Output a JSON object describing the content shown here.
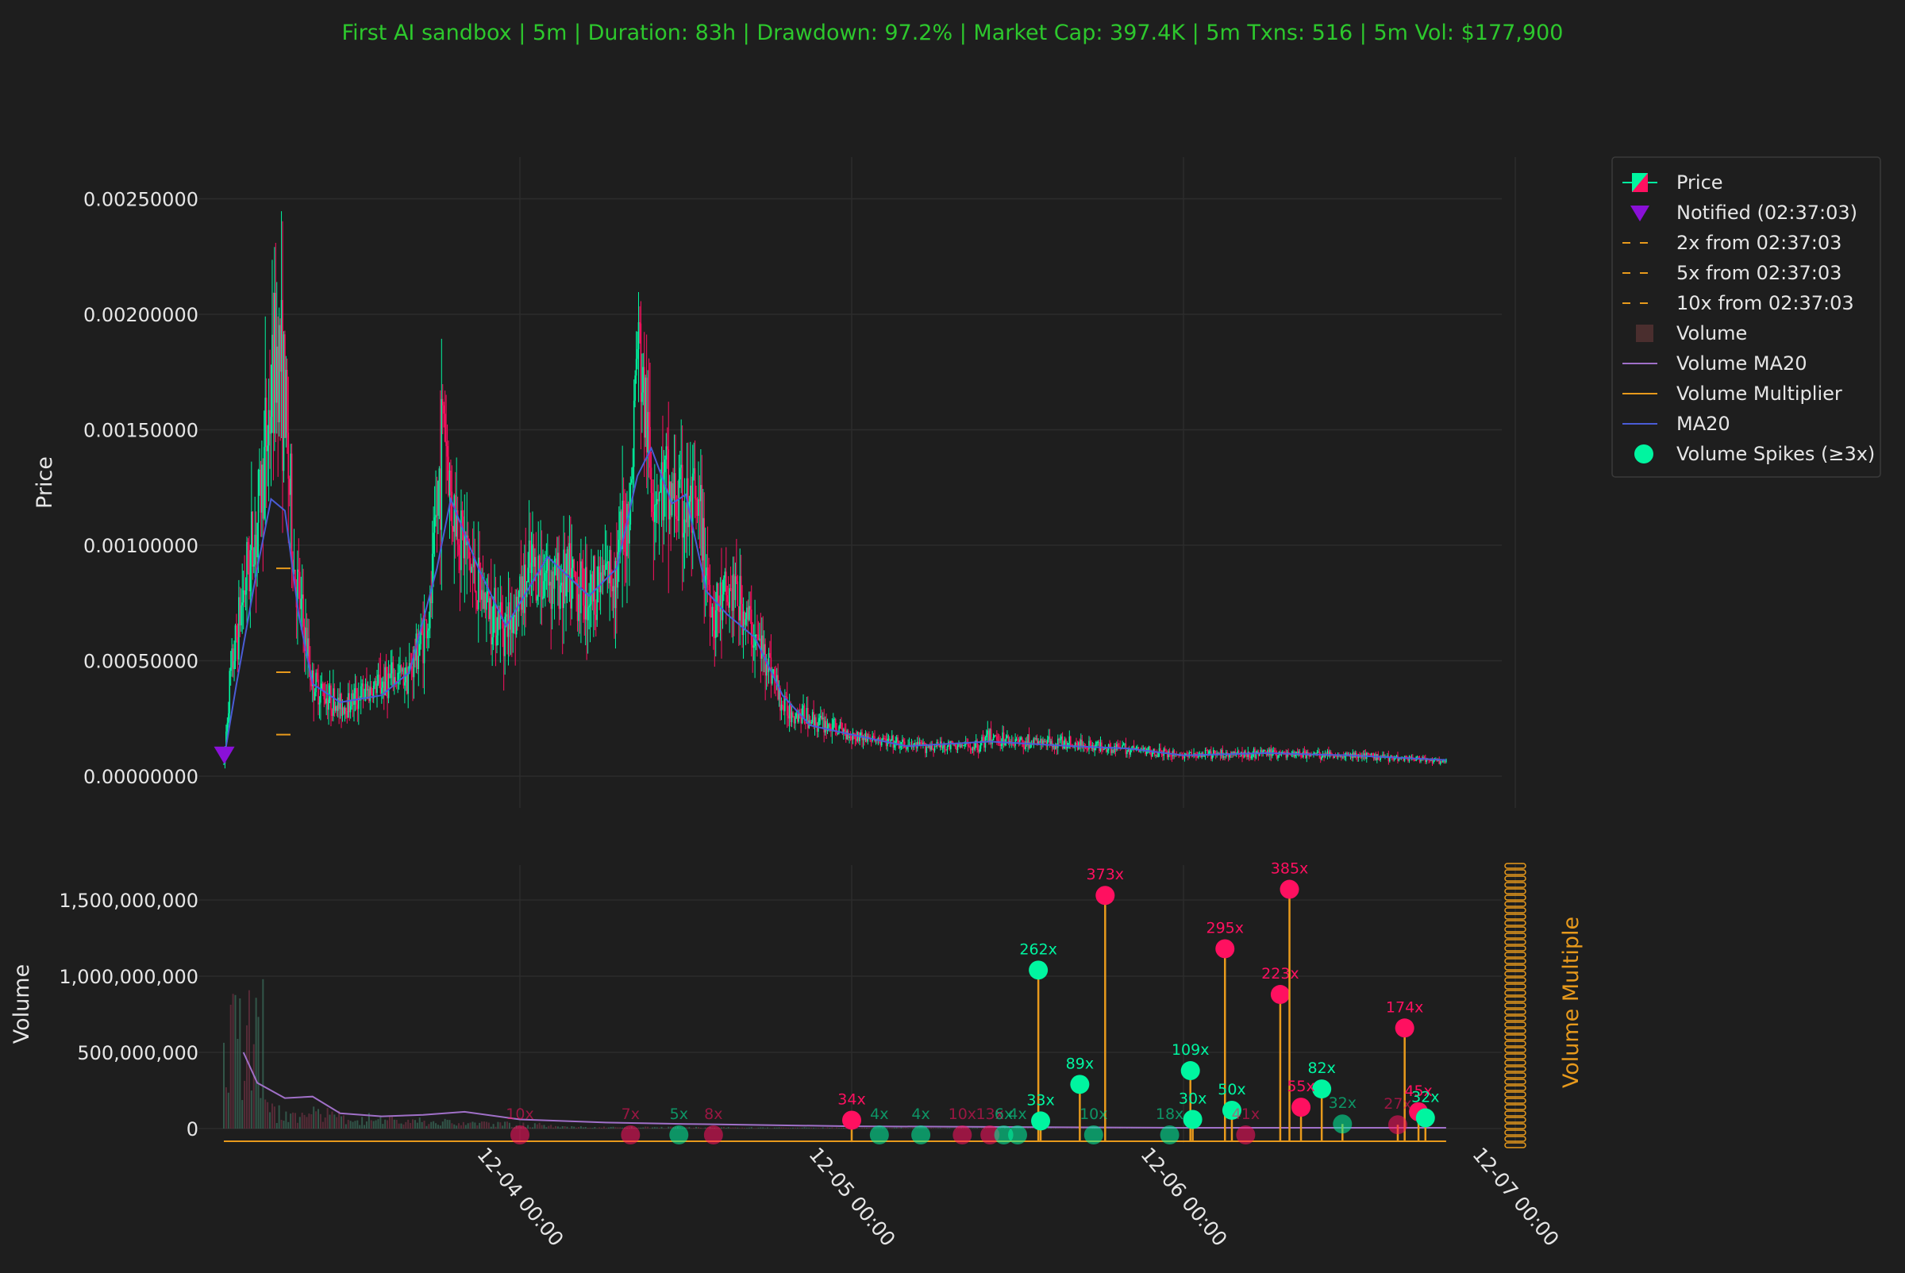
{
  "title": "First AI sandbox | 5m | Duration: 83h | Drawdown: 97.2% | Market Cap: 397.4K | 5m Txns: 516 | 5m Vol: $177,900",
  "colors": {
    "background": "#1e1e1e",
    "title": "#2dc82d",
    "up": "#00f5a0",
    "down": "#ff1060",
    "ma20": "#4a5cd6",
    "volume_ma20": "#a070c8",
    "multiplier": "#e89a1c",
    "notified": "#8a10d8",
    "grid": "#2c2c2c",
    "text": "#e6e6e6"
  },
  "chart_data": [
    {
      "type": "candlestick",
      "ylabel": "Price",
      "ylim": [
        -0.0001,
        0.0026
      ],
      "yticks": [
        "0.00000000",
        "0.00050000",
        "0.00100000",
        "0.00150000",
        "0.00200000",
        "0.00250000"
      ],
      "x_axis": {
        "ticks": [
          "12-04 00:00",
          "12-05 00:00",
          "12-06 00:00",
          "12-07 00:00"
        ]
      },
      "grid": true,
      "legend_position": "outside-right",
      "legend": [
        {
          "label": "Price",
          "marker": "candle"
        },
        {
          "label": "Notified (02:37:03)",
          "marker": "triangle"
        },
        {
          "label": "2x from 02:37:03",
          "marker": "dash"
        },
        {
          "label": "5x from 02:37:03",
          "marker": "dash"
        },
        {
          "label": "10x from 02:37:03",
          "marker": "dash"
        },
        {
          "label": "Volume",
          "marker": "square"
        },
        {
          "label": "Volume MA20",
          "marker": "line-purple"
        },
        {
          "label": "Volume Multiplier",
          "marker": "line-orange"
        },
        {
          "label": "MA20",
          "marker": "line-blue"
        },
        {
          "label": "Volume Spikes (≥3x)",
          "marker": "circle"
        }
      ],
      "notified": {
        "time": "12-03 02:37",
        "price": 9e-05
      },
      "reference_levels": [
        {
          "label": "2x from 02:37:03",
          "value": 0.00018
        },
        {
          "label": "5x from 02:37:03",
          "value": 0.00045
        },
        {
          "label": "10x from 02:37:03",
          "value": 0.0009
        }
      ],
      "price_path": [
        [
          "12-03 02:35",
          5e-05
        ],
        [
          "12-03 03:00",
          0.0004
        ],
        [
          "12-03 04:00",
          0.0008
        ],
        [
          "12-03 05:00",
          0.0011
        ],
        [
          "12-03 06:30",
          0.0019
        ],
        [
          "12-03 07:00",
          0.0016
        ],
        [
          "12-03 07:40",
          0.0009
        ],
        [
          "12-03 09:00",
          0.0004
        ],
        [
          "12-03 11:00",
          0.0003
        ],
        [
          "12-03 14:00",
          0.0004
        ],
        [
          "12-03 16:00",
          0.00045
        ],
        [
          "12-03 17:30",
          0.0007
        ],
        [
          "12-03 18:30",
          0.0016
        ],
        [
          "12-03 19:00",
          0.0012
        ],
        [
          "12-03 21:00",
          0.0008
        ],
        [
          "12-03 23:00",
          0.00065
        ],
        [
          "12-04 01:00",
          0.0009
        ],
        [
          "12-04 03:00",
          0.00085
        ],
        [
          "12-04 05:00",
          0.0008
        ],
        [
          "12-04 07:00",
          0.0009
        ],
        [
          "12-04 08:00",
          0.0012
        ],
        [
          "12-04 08:30",
          0.0019
        ],
        [
          "12-04 09:30",
          0.0013
        ],
        [
          "12-04 11:00",
          0.0012
        ],
        [
          "12-04 13:00",
          0.0011
        ],
        [
          "12-04 14:00",
          0.0007
        ],
        [
          "12-04 15:30",
          0.0008
        ],
        [
          "12-04 17:00",
          0.0006
        ],
        [
          "12-04 18:00",
          0.0005
        ],
        [
          "12-04 19:00",
          0.0003
        ],
        [
          "12-04 21:00",
          0.00025
        ],
        [
          "12-05 00:00",
          0.00018
        ],
        [
          "12-05 04:00",
          0.00013
        ],
        [
          "12-05 09:00",
          0.00013
        ],
        [
          "12-05 10:00",
          0.00017
        ],
        [
          "12-05 12:00",
          0.00015
        ],
        [
          "12-05 16:00",
          0.00014
        ],
        [
          "12-05 20:00",
          0.00012
        ],
        [
          "12-06 00:00",
          9e-05
        ],
        [
          "12-06 06:00",
          0.0001
        ],
        [
          "12-06 12:00",
          9e-05
        ],
        [
          "12-06 16:00",
          8e-05
        ],
        [
          "12-06 19:00",
          6e-05
        ]
      ],
      "series": [
        {
          "name": "MA20",
          "points": [
            [
              "12-03 02:40",
              0.0001
            ],
            [
              "12-03 03:30",
              0.0004
            ],
            [
              "12-03 05:00",
              0.0009
            ],
            [
              "12-03 06:00",
              0.0012
            ],
            [
              "12-03 07:00",
              0.00115
            ],
            [
              "12-03 08:00",
              0.0007
            ],
            [
              "12-03 09:00",
              0.0004
            ],
            [
              "12-03 11:00",
              0.00032
            ],
            [
              "12-03 14:00",
              0.00035
            ],
            [
              "12-03 16:00",
              0.00045
            ],
            [
              "12-03 18:00",
              0.0009
            ],
            [
              "12-03 19:00",
              0.0012
            ],
            [
              "12-03 21:00",
              0.0009
            ],
            [
              "12-03 23:00",
              0.00065
            ],
            [
              "12-04 02:00",
              0.00095
            ],
            [
              "12-04 05:00",
              0.00078
            ],
            [
              "12-04 07:00",
              0.0009
            ],
            [
              "12-04 08:30",
              0.0013
            ],
            [
              "12-04 09:30",
              0.00142
            ],
            [
              "12-04 11:00",
              0.00118
            ],
            [
              "12-04 12:00",
              0.00122
            ],
            [
              "12-04 13:30",
              0.0008
            ],
            [
              "12-04 15:00",
              0.0007
            ],
            [
              "12-04 17:00",
              0.0006
            ],
            [
              "12-04 19:00",
              0.00035
            ],
            [
              "12-04 21:00",
              0.00022
            ],
            [
              "12-05 00:00",
              0.00018
            ],
            [
              "12-05 04:00",
              0.00013
            ],
            [
              "12-05 10:00",
              0.00015
            ],
            [
              "12-05 16:00",
              0.00013
            ],
            [
              "12-05 20:00",
              0.00012
            ],
            [
              "12-06 00:00",
              9e-05
            ],
            [
              "12-06 06:00",
              0.0001
            ],
            [
              "12-06 12:00",
              9e-05
            ],
            [
              "12-06 19:00",
              7e-05
            ]
          ]
        }
      ]
    },
    {
      "type": "bar",
      "ylabel": "Volume",
      "ylabel_right": "Volume Multiple",
      "ylim": [
        -90000000,
        1700000000
      ],
      "yticks": [
        "0",
        "500,000,000",
        "1,000,000,000",
        "1,500,000,000"
      ],
      "x_axis": {
        "ticks": [
          "12-04 00:00",
          "12-05 00:00",
          "12-06 00:00",
          "12-07 00:00"
        ]
      },
      "grid": true,
      "volume_ma20": [
        [
          "12-03 04:00",
          500000000
        ],
        [
          "12-03 05:00",
          300000000
        ],
        [
          "12-03 07:00",
          200000000
        ],
        [
          "12-03 09:00",
          210000000
        ],
        [
          "12-03 11:00",
          100000000
        ],
        [
          "12-03 14:00",
          80000000
        ],
        [
          "12-03 17:00",
          90000000
        ],
        [
          "12-03 20:00",
          110000000
        ],
        [
          "12-04 00:00",
          60000000
        ],
        [
          "12-04 06:00",
          40000000
        ],
        [
          "12-04 12:00",
          30000000
        ],
        [
          "12-05 00:00",
          15000000
        ],
        [
          "12-05 12:00",
          10000000
        ],
        [
          "12-06 00:00",
          5000000
        ],
        [
          "12-06 19:00",
          5000000
        ]
      ],
      "spikes": [
        {
          "time": "12-05 13:30",
          "volume": 1040000000,
          "label": "262x",
          "dir": "up"
        },
        {
          "time": "12-05 18:20",
          "volume": 1530000000,
          "label": "373x",
          "dir": "down"
        },
        {
          "time": "12-06 03:00",
          "volume": 1180000000,
          "label": "295x",
          "dir": "down"
        },
        {
          "time": "12-06 07:00",
          "volume": 880000000,
          "label": "223x",
          "dir": "down"
        },
        {
          "time": "12-06 07:40",
          "volume": 1570000000,
          "label": "385x",
          "dir": "down"
        },
        {
          "time": "12-06 16:00",
          "volume": 660000000,
          "label": "174x",
          "dir": "down"
        },
        {
          "time": "12-06 00:30",
          "volume": 380000000,
          "label": "109x",
          "dir": "up"
        },
        {
          "time": "12-05 16:30",
          "volume": 290000000,
          "label": "89x",
          "dir": "up"
        },
        {
          "time": "12-06 10:00",
          "volume": 260000000,
          "label": "82x",
          "dir": "up"
        },
        {
          "time": "12-06 08:30",
          "volume": 140000000,
          "label": "55x",
          "dir": "down"
        },
        {
          "time": "12-06 03:30",
          "volume": 120000000,
          "label": "50x",
          "dir": "up"
        },
        {
          "time": "12-06 17:00",
          "volume": 110000000,
          "label": "45x",
          "dir": "down"
        },
        {
          "time": "12-05 00:00",
          "volume": 55000000,
          "label": "34x",
          "dir": "down"
        },
        {
          "time": "12-05 13:40",
          "volume": 50000000,
          "label": "33x",
          "dir": "up"
        },
        {
          "time": "12-06 17:30",
          "volume": 70000000,
          "label": "32x",
          "dir": "up"
        },
        {
          "time": "12-06 11:30",
          "volume": 30000000,
          "label": "32x",
          "dir": "up"
        },
        {
          "time": "12-06 00:40",
          "volume": 60000000,
          "label": "30x",
          "dir": "up"
        },
        {
          "time": "12-06 15:30",
          "volume": 25000000,
          "label": "27x",
          "dir": "down"
        },
        {
          "time": "12-05 23:00",
          "volume": 0,
          "label": "18x",
          "dir": "up"
        },
        {
          "time": "12-06 04:30",
          "volume": 0,
          "label": "41x",
          "dir": "down"
        },
        {
          "time": "12-05 10:00",
          "volume": 0,
          "label": "13x",
          "dir": "down"
        },
        {
          "time": "12-05 08:00",
          "volume": 0,
          "label": "10x",
          "dir": "down"
        },
        {
          "time": "12-05 17:30",
          "volume": 0,
          "label": "10x",
          "dir": "up"
        },
        {
          "time": "12-04 00:00",
          "volume": 0,
          "label": "10x",
          "dir": "down"
        },
        {
          "time": "12-04 08:00",
          "volume": 0,
          "label": "7x",
          "dir": "down"
        },
        {
          "time": "12-04 11:30",
          "volume": 0,
          "label": "5x",
          "dir": "up"
        },
        {
          "time": "12-04 14:00",
          "volume": 0,
          "label": "8x",
          "dir": "down"
        },
        {
          "time": "12-05 02:00",
          "volume": 0,
          "label": "4x",
          "dir": "up"
        },
        {
          "time": "12-05 05:00",
          "volume": 0,
          "label": "4x",
          "dir": "up"
        },
        {
          "time": "12-05 12:00",
          "volume": 0,
          "label": "4x",
          "dir": "up"
        },
        {
          "time": "12-05 11:00",
          "volume": 0,
          "label": "6x",
          "dir": "up"
        }
      ]
    }
  ]
}
